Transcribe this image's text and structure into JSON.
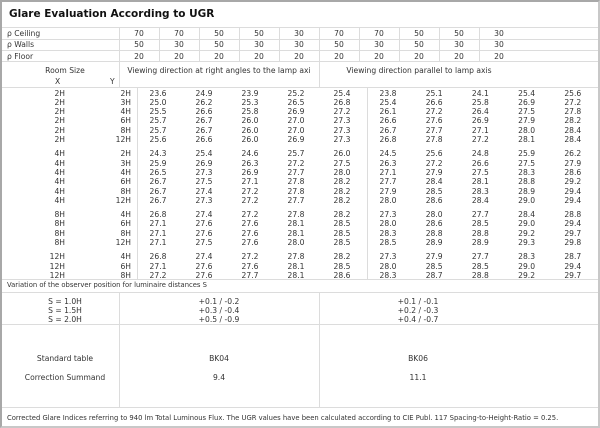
{
  "title": "Glare Evaluation According to UGR",
  "reflectances": [
    {
      "label": "ρ  Ceiling",
      "values": [
        "70",
        "70",
        "50",
        "50",
        "30",
        "70",
        "70",
        "50",
        "50",
        "30"
      ]
    },
    {
      "label": "ρ  Walls",
      "values": [
        "50",
        "30",
        "50",
        "30",
        "30",
        "50",
        "30",
        "50",
        "30",
        "30"
      ]
    },
    {
      "label": "ρ  Floor",
      "values": [
        "20",
        "20",
        "20",
        "20",
        "20",
        "20",
        "20",
        "20",
        "20",
        "20"
      ]
    }
  ],
  "room_size": {
    "label": "Room Size",
    "x_label": "X",
    "y_label": "Y"
  },
  "view_headers": [
    "Viewing direction at right angles to the lamp axi",
    "Viewing direction parallel to lamp axis"
  ],
  "groups": [
    {
      "rows": [
        {
          "x": "2H",
          "y": "2H",
          "values": [
            "23.6",
            "24.9",
            "23.9",
            "25.2",
            "25.4",
            "23.8",
            "25.1",
            "24.1",
            "25.4",
            "25.6"
          ]
        },
        {
          "x": "2H",
          "y": "3H",
          "values": [
            "25.0",
            "26.2",
            "25.3",
            "26.5",
            "26.8",
            "25.4",
            "26.6",
            "25.8",
            "26.9",
            "27.2"
          ]
        },
        {
          "x": "2H",
          "y": "4H",
          "values": [
            "25.5",
            "26.6",
            "25.8",
            "26.9",
            "27.2",
            "26.1",
            "27.2",
            "26.4",
            "27.5",
            "27.8"
          ]
        },
        {
          "x": "2H",
          "y": "6H",
          "values": [
            "25.7",
            "26.7",
            "26.0",
            "27.0",
            "27.3",
            "26.6",
            "27.6",
            "26.9",
            "27.9",
            "28.2"
          ]
        },
        {
          "x": "2H",
          "y": "8H",
          "values": [
            "25.7",
            "26.7",
            "26.0",
            "27.0",
            "27.3",
            "26.7",
            "27.7",
            "27.1",
            "28.0",
            "28.4"
          ]
        },
        {
          "x": "2H",
          "y": "12H",
          "values": [
            "25.6",
            "26.6",
            "26.0",
            "26.9",
            "27.3",
            "26.8",
            "27.8",
            "27.2",
            "28.1",
            "28.4"
          ]
        }
      ]
    },
    {
      "rows": [
        {
          "x": "4H",
          "y": "2H",
          "values": [
            "24.3",
            "25.4",
            "24.6",
            "25.7",
            "26.0",
            "24.5",
            "25.6",
            "24.8",
            "25.9",
            "26.2"
          ]
        },
        {
          "x": "4H",
          "y": "3H",
          "values": [
            "25.9",
            "26.9",
            "26.3",
            "27.2",
            "27.5",
            "26.3",
            "27.2",
            "26.6",
            "27.5",
            "27.9"
          ]
        },
        {
          "x": "4H",
          "y": "4H",
          "values": [
            "26.5",
            "27.3",
            "26.9",
            "27.7",
            "28.0",
            "27.1",
            "27.9",
            "27.5",
            "28.3",
            "28.6"
          ]
        },
        {
          "x": "4H",
          "y": "6H",
          "values": [
            "26.7",
            "27.5",
            "27.1",
            "27.8",
            "28.2",
            "27.7",
            "28.4",
            "28.1",
            "28.8",
            "29.2"
          ]
        },
        {
          "x": "4H",
          "y": "8H",
          "values": [
            "26.7",
            "27.4",
            "27.2",
            "27.8",
            "28.2",
            "27.9",
            "28.5",
            "28.3",
            "28.9",
            "29.4"
          ]
        },
        {
          "x": "4H",
          "y": "12H",
          "values": [
            "26.7",
            "27.3",
            "27.2",
            "27.7",
            "28.2",
            "28.0",
            "28.6",
            "28.4",
            "29.0",
            "29.4"
          ]
        }
      ]
    },
    {
      "rows": [
        {
          "x": "8H",
          "y": "4H",
          "values": [
            "26.8",
            "27.4",
            "27.2",
            "27.8",
            "28.2",
            "27.3",
            "28.0",
            "27.7",
            "28.4",
            "28.8"
          ]
        },
        {
          "x": "8H",
          "y": "6H",
          "values": [
            "27.1",
            "27.6",
            "27.6",
            "28.1",
            "28.5",
            "28.0",
            "28.6",
            "28.5",
            "29.0",
            "29.4"
          ]
        },
        {
          "x": "8H",
          "y": "8H",
          "values": [
            "27.1",
            "27.6",
            "27.6",
            "28.1",
            "28.5",
            "28.3",
            "28.8",
            "28.8",
            "29.2",
            "29.7"
          ]
        },
        {
          "x": "8H",
          "y": "12H",
          "values": [
            "27.1",
            "27.5",
            "27.6",
            "28.0",
            "28.5",
            "28.5",
            "28.9",
            "28.9",
            "29.3",
            "29.8"
          ]
        }
      ]
    },
    {
      "rows": [
        {
          "x": "12H",
          "y": "4H",
          "values": [
            "26.8",
            "27.4",
            "27.2",
            "27.8",
            "28.2",
            "27.3",
            "27.9",
            "27.7",
            "28.3",
            "28.7"
          ]
        },
        {
          "x": "12H",
          "y": "6H",
          "values": [
            "27.1",
            "27.6",
            "27.6",
            "28.1",
            "28.5",
            "28.0",
            "28.5",
            "28.5",
            "29.0",
            "29.4"
          ]
        },
        {
          "x": "12H",
          "y": "8H",
          "values": [
            "27.2",
            "27.6",
            "27.7",
            "28.1",
            "28.6",
            "28.3",
            "28.7",
            "28.8",
            "29.2",
            "29.7"
          ]
        }
      ]
    }
  ],
  "variation": {
    "label": "Variation of the observer position for luminaire distances S",
    "spacings": [
      "S = 1.0H",
      "S = 1.5H",
      "S = 2.0H"
    ],
    "right_angles": [
      "+0.1 / -0.2",
      "+0.3 / -0.4",
      "+0.5 / -0.9"
    ],
    "parallel": [
      "+0.1 / -0.1",
      "+0.2 / -0.3",
      "+0.4 / -0.7"
    ]
  },
  "standard_table": {
    "label": "Standard table",
    "right_angles": "BK04",
    "parallel": "BK06"
  },
  "correction_summand": {
    "label": "Correction Summand",
    "right_angles": "9.4",
    "parallel": "11.1"
  },
  "footer": "Corrected Glare Indices referring to 940 lm Total Luminous Flux. The UGR values have been calculated according to CIE Publ. 117    Spacing-to-Height-Ratio = 0.25."
}
